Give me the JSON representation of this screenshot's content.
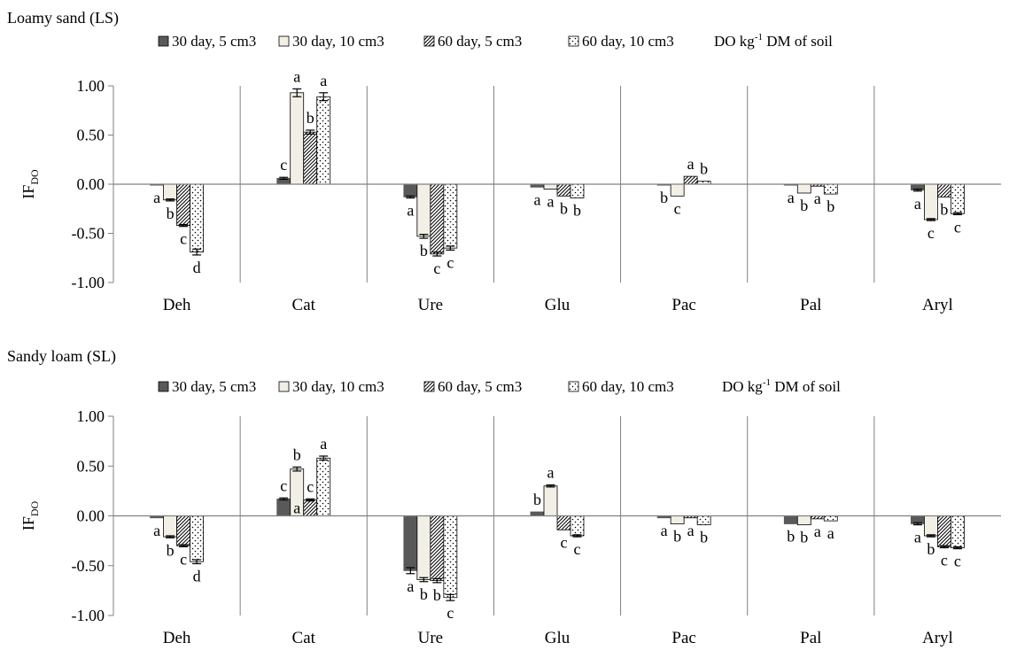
{
  "colors": {
    "dark": "#595959",
    "light": "#f2f0e6",
    "axis": "#808080",
    "err": "#000000"
  },
  "chart_data": [
    {
      "type": "bar",
      "title": "Loamy sand (LS)",
      "legend": [
        "30 day, 5 cm3",
        "30 day, 10  cm3",
        "60 day, 5  cm3",
        "60 day, 10  cm3"
      ],
      "legend_suffix": "DO kg-1 DM of soil",
      "ylabel": "IFDO",
      "ylim": [
        -1.0,
        1.0
      ],
      "yticks": [
        "1.00",
        "0.50",
        "0.00",
        "-0.50",
        "-1.00"
      ],
      "categories": [
        "Deh",
        "Cat",
        "Ure",
        "Glu",
        "Pac",
        "Pal",
        "Aryl"
      ],
      "series": [
        {
          "name": "30 day, 5 cm3",
          "pattern": "solid",
          "values": [
            -0.01,
            0.06,
            -0.13,
            -0.03,
            -0.01,
            -0.01,
            -0.06
          ],
          "errors": [
            0.0,
            0.01,
            0.01,
            0.0,
            0.0,
            0.0,
            0.01
          ],
          "letters": [
            "a",
            "c",
            "a",
            "a",
            "b",
            "a",
            "a"
          ]
        },
        {
          "name": "30 day, 10  cm3",
          "pattern": "light",
          "values": [
            -0.16,
            0.93,
            -0.53,
            -0.05,
            -0.12,
            -0.09,
            -0.36
          ],
          "errors": [
            0.01,
            0.04,
            0.02,
            0.0,
            0.0,
            0.0,
            0.01
          ],
          "letters": [
            "b",
            "a",
            "b",
            "a",
            "c",
            "b",
            "c"
          ]
        },
        {
          "name": "60 day, 5  cm3",
          "pattern": "hatch",
          "values": [
            -0.42,
            0.53,
            -0.71,
            -0.12,
            0.08,
            -0.02,
            -0.13
          ],
          "errors": [
            0.01,
            0.02,
            0.02,
            0.0,
            0.0,
            0.0,
            0.0
          ],
          "letters": [
            "c",
            "b",
            "c",
            "b",
            "a",
            "a",
            "b"
          ]
        },
        {
          "name": "60 day, 10  cm3",
          "pattern": "dots",
          "values": [
            -0.69,
            0.89,
            -0.65,
            -0.14,
            0.03,
            -0.1,
            -0.3
          ],
          "errors": [
            0.03,
            0.04,
            0.02,
            0.0,
            0.0,
            0.0,
            0.01
          ],
          "letters": [
            "d",
            "a",
            "c",
            "b",
            "b",
            "b",
            "c"
          ]
        }
      ]
    },
    {
      "type": "bar",
      "title": "Sandy loam (SL)",
      "legend": [
        "30 day, 5 cm3",
        "30 day, 10  cm3",
        "60 day, 5  cm3",
        "60 day, 10  cm3"
      ],
      "legend_suffix": "DO kg-1 DM of soil",
      "ylabel": "IFDO",
      "ylim": [
        -1.0,
        1.0
      ],
      "yticks": [
        "1.00",
        "0.50",
        "0.00",
        "-0.50",
        "-1.00"
      ],
      "categories": [
        "Deh",
        "Cat",
        "Ure",
        "Glu",
        "Pac",
        "Pal",
        "Aryl"
      ],
      "series": [
        {
          "name": "30 day, 5 cm3",
          "pattern": "solid",
          "values": [
            -0.02,
            0.17,
            -0.55,
            0.04,
            -0.02,
            -0.08,
            -0.08
          ],
          "errors": [
            0.0,
            0.01,
            0.03,
            0.0,
            0.0,
            0.0,
            0.01
          ],
          "letters": [
            "a",
            "c",
            "a",
            "b",
            "a",
            "b",
            "a"
          ]
        },
        {
          "name": "30 day, 10  cm3",
          "pattern": "light",
          "values": [
            -0.21,
            0.47,
            -0.64,
            0.3,
            -0.08,
            -0.09,
            -0.2
          ],
          "errors": [
            0.01,
            0.02,
            0.02,
            0.01,
            0.0,
            0.0,
            0.01
          ],
          "letters": [
            "b",
            "b",
            "b",
            "a",
            "b",
            "b",
            "b"
          ]
        },
        {
          "name": "60 day, 5  cm3",
          "pattern": "hatch",
          "values": [
            -0.3,
            0.16,
            -0.65,
            -0.14,
            -0.02,
            -0.03,
            -0.31
          ],
          "errors": [
            0.01,
            0.01,
            0.02,
            0.0,
            0.0,
            0.0,
            0.01
          ],
          "letters": [
            "c",
            "c",
            "b",
            "c",
            "a",
            "a",
            "c"
          ]
        },
        {
          "name": "60 day, 10  cm3",
          "pattern": "dots",
          "values": [
            -0.46,
            0.58,
            -0.82,
            -0.2,
            -0.09,
            -0.05,
            -0.32
          ],
          "errors": [
            0.02,
            0.02,
            0.03,
            0.01,
            0.0,
            0.0,
            0.01
          ],
          "letters": [
            "d",
            "a",
            "c",
            "c",
            "b",
            "a",
            "c"
          ]
        }
      ],
      "extra_labels": [
        {
          "category": "Cat",
          "series": 1,
          "letter": "a",
          "position": "inside-bottom"
        }
      ]
    }
  ]
}
